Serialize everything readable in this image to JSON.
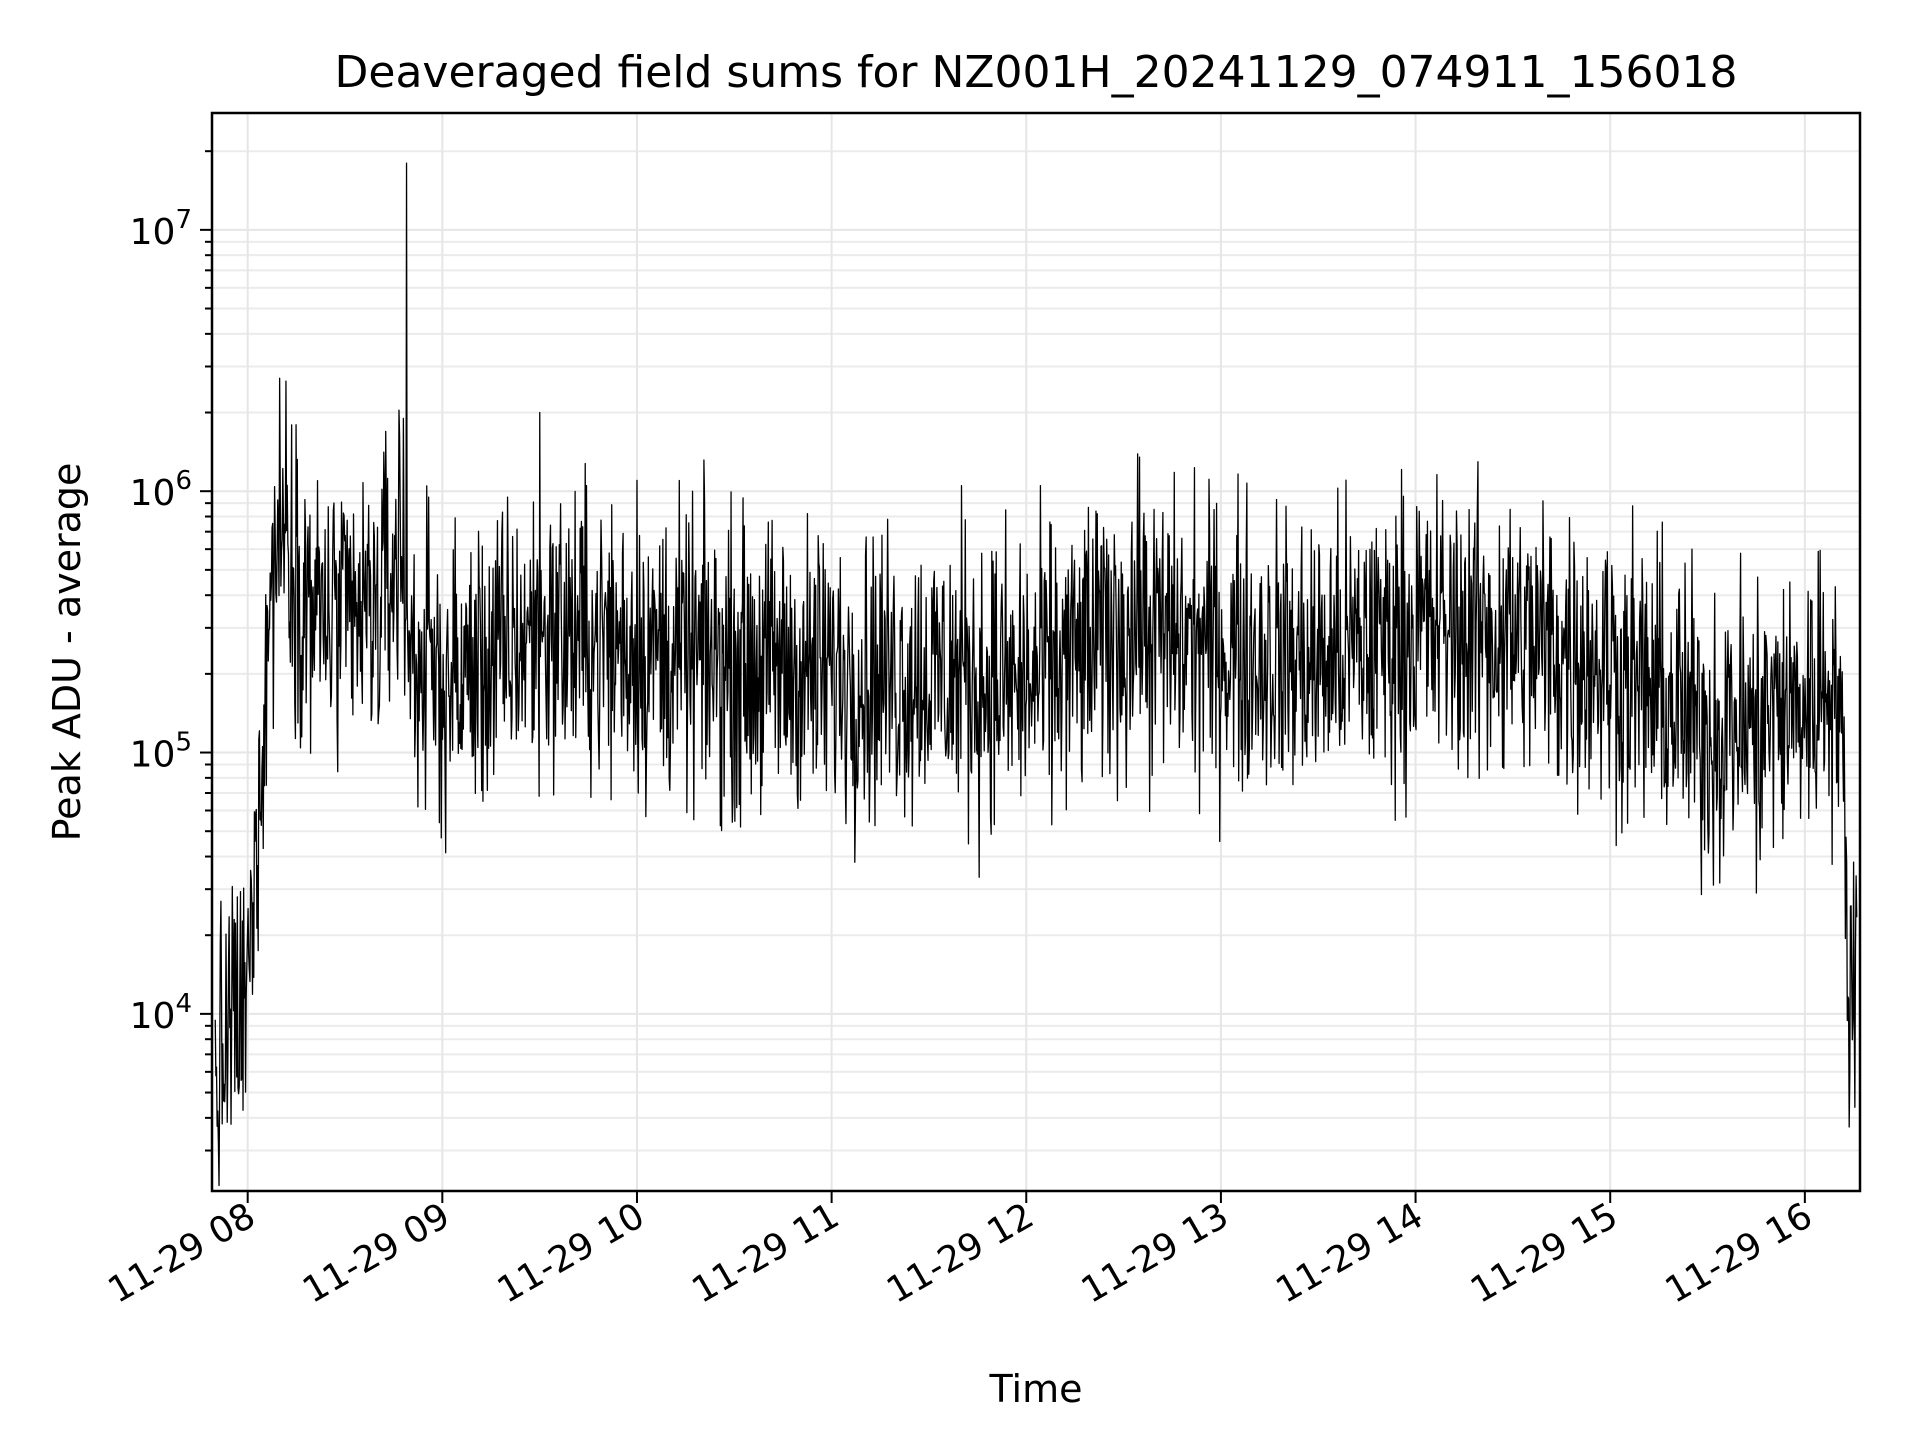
{
  "chart_data": {
    "type": "line",
    "title": "Deaveraged field sums for NZ001H_20241129_074911_156018",
    "xlabel": "Time",
    "ylabel": "Peak ADU - average",
    "yscale": "log",
    "ylim": [
      2100,
      28000000
    ],
    "xlim": [
      "2024-11-29 07:49:00",
      "2024-11-29 16:17:00"
    ],
    "grid": true,
    "x_ticks": [
      "11-29 08",
      "11-29 09",
      "11-29 10",
      "11-29 11",
      "11-29 12",
      "11-29 13",
      "11-29 14",
      "11-29 15",
      "11-29 16"
    ],
    "y_ticks": [
      {
        "base": "10",
        "exp": "4",
        "value": 10000
      },
      {
        "base": "10",
        "exp": "5",
        "value": 100000
      },
      {
        "base": "10",
        "exp": "6",
        "value": 1000000
      },
      {
        "base": "10",
        "exp": "7",
        "value": 10000000
      }
    ],
    "series": [
      {
        "line_color": "#000000",
        "x": [
          "2024-11-29 07:50:00",
          "2024-11-29 07:52:00",
          "2024-11-29 07:54:00",
          "2024-11-29 07:56:00",
          "2024-11-29 07:58:00",
          "2024-11-29 08:00:00",
          "2024-11-29 08:02:00",
          "2024-11-29 08:03:00",
          "2024-11-29 08:05:00",
          "2024-11-29 08:07:00",
          "2024-11-29 08:09:00",
          "2024-11-29 08:12:00",
          "2024-11-29 08:15:00",
          "2024-11-29 08:20:00",
          "2024-11-29 08:30:00",
          "2024-11-29 08:40:00",
          "2024-11-29 08:47:00",
          "2024-11-29 08:50:00",
          "2024-11-29 09:00:00",
          "2024-11-29 09:15:00",
          "2024-11-29 09:30:00",
          "2024-11-29 09:45:00",
          "2024-11-29 10:00:00",
          "2024-11-29 10:30:00",
          "2024-11-29 11:00:00",
          "2024-11-29 11:30:00",
          "2024-11-29 12:00:00",
          "2024-11-29 12:30:00",
          "2024-11-29 13:00:00",
          "2024-11-29 13:30:00",
          "2024-11-29 14:00:00",
          "2024-11-29 14:30:00",
          "2024-11-29 15:00:00",
          "2024-11-29 15:30:00",
          "2024-11-29 16:00:00",
          "2024-11-29 16:08:00",
          "2024-11-29 16:11:00",
          "2024-11-29 16:13:00",
          "2024-11-29 16:15:00",
          "2024-11-29 16:16:00"
        ],
        "y": [
          5000,
          6500,
          8000,
          10000,
          9000,
          12000,
          30000,
          60000,
          150000,
          400000,
          700000,
          800000,
          500000,
          350000,
          300000,
          350000,
          600000,
          250000,
          180000,
          220000,
          300000,
          280000,
          250000,
          220000,
          200000,
          200000,
          180000,
          300000,
          250000,
          220000,
          300000,
          280000,
          220000,
          120000,
          150000,
          200000,
          150000,
          20000,
          9000,
          30000
        ],
        "extremes": [
          {
            "x": "2024-11-29 08:49:00",
            "y": 18000000
          },
          {
            "x": "2024-11-29 08:48:00",
            "y": 1900000
          },
          {
            "x": "2024-11-29 09:30:00",
            "y": 2000000
          },
          {
            "x": "2024-11-29 12:35:00",
            "y": 1350000
          },
          {
            "x": "2024-11-29 10:00:00",
            "y": 1100000
          },
          {
            "x": "2024-11-29 11:40:00",
            "y": 1050000
          },
          {
            "x": "2024-11-29 15:45:00",
            "y": 29000
          },
          {
            "x": "2024-11-29 07:51:00",
            "y": 3200
          }
        ]
      }
    ]
  }
}
